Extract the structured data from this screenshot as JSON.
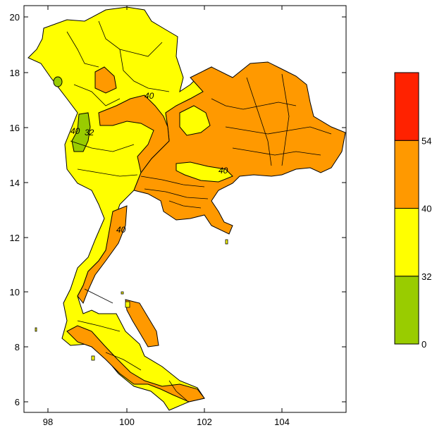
{
  "map": {
    "x_ticks": [
      "98",
      "100",
      "102",
      "104"
    ],
    "y_ticks": [
      "20",
      "18",
      "16",
      "14",
      "12",
      "10",
      "8",
      "6"
    ],
    "contour_labels": [
      "40",
      "40",
      "40",
      "40",
      "32"
    ]
  },
  "legend": {
    "bins": [
      {
        "from": 0,
        "to": 32,
        "color": "#99cc00"
      },
      {
        "from": 32,
        "to": 40,
        "color": "#ffff00"
      },
      {
        "from": 40,
        "to": 54,
        "color": "#ff9900"
      },
      {
        "from": 54,
        "to": null,
        "color": "#ff2200"
      }
    ],
    "labels": [
      "0",
      "32",
      "40",
      "54"
    ]
  },
  "colors": {
    "low": "#99cc00",
    "mid": "#ffff00",
    "high": "#ff9900",
    "extreme": "#ff2200",
    "border": "#000000"
  }
}
